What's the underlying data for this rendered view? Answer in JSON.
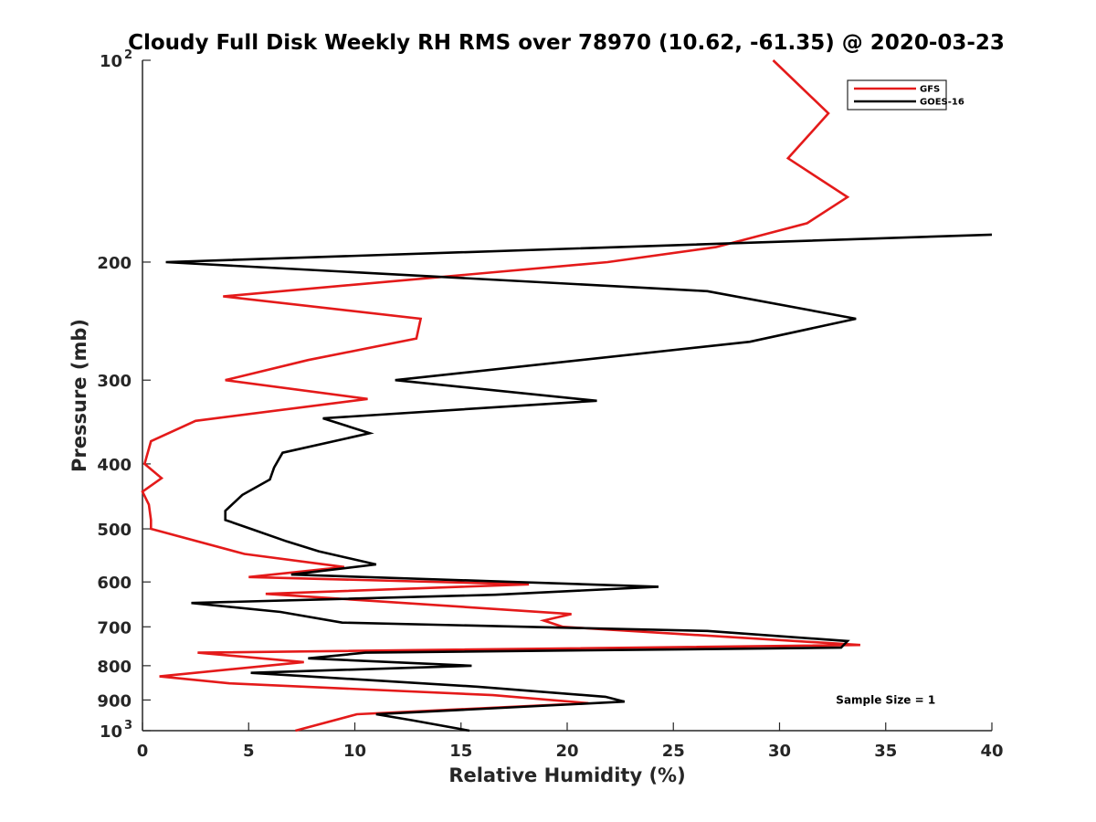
{
  "chart_data": {
    "type": "line",
    "title": "Cloudy Full Disk Weekly RH RMS over 78970 (10.62, -61.35) @ 2020-03-23",
    "xlabel": "Relative Humidity (%)",
    "ylabel": "Pressure (mb)",
    "xlim": [
      0,
      40
    ],
    "ylim": [
      100,
      1000
    ],
    "y_scale": "log",
    "y_reversed": true,
    "x_ticks": [
      "0",
      "5",
      "10",
      "15",
      "20",
      "25",
      "30",
      "35",
      "40"
    ],
    "y_ticks": [
      {
        "value": 100,
        "base": "10",
        "exp": "2"
      },
      {
        "value": 200,
        "label": "200"
      },
      {
        "value": 300,
        "label": "300"
      },
      {
        "value": 400,
        "label": "400"
      },
      {
        "value": 500,
        "label": "500"
      },
      {
        "value": 600,
        "label": "600"
      },
      {
        "value": 700,
        "label": "700"
      },
      {
        "value": 800,
        "label": "800"
      },
      {
        "value": 900,
        "label": "900"
      },
      {
        "value": 1000,
        "base": "10",
        "exp": "3"
      }
    ],
    "legend_position": "top-right",
    "grid": false,
    "series": [
      {
        "name": "GFS",
        "color": "#e41a1a",
        "points": [
          [
            29.7,
            100
          ],
          [
            32.3,
            120
          ],
          [
            30.4,
            140
          ],
          [
            33.2,
            160
          ],
          [
            31.3,
            175
          ],
          [
            27.0,
            190
          ],
          [
            21.9,
            200
          ],
          [
            3.8,
            225
          ],
          [
            13.1,
            243
          ],
          [
            12.9,
            260
          ],
          [
            7.8,
            280
          ],
          [
            3.9,
            300
          ],
          [
            10.6,
            320
          ],
          [
            2.5,
            345
          ],
          [
            0.4,
            370
          ],
          [
            0.1,
            400
          ],
          [
            0.9,
            420
          ],
          [
            0.0,
            440
          ],
          [
            0.3,
            460
          ],
          [
            0.4,
            485
          ],
          [
            0.4,
            500
          ],
          [
            4.8,
            545
          ],
          [
            9.5,
            570
          ],
          [
            5.0,
            590
          ],
          [
            18.2,
            605
          ],
          [
            5.8,
            625
          ],
          [
            20.2,
            670
          ],
          [
            18.9,
            685
          ],
          [
            19.8,
            700
          ],
          [
            33.8,
            745
          ],
          [
            2.6,
            765
          ],
          [
            7.6,
            790
          ],
          [
            0.8,
            830
          ],
          [
            4.1,
            850
          ],
          [
            16.5,
            885
          ],
          [
            21.0,
            910
          ],
          [
            10.1,
            945
          ],
          [
            7.2,
            1000
          ]
        ]
      },
      {
        "name": "GOES-16",
        "color": "#000000",
        "points": [
          [
            40.0,
            182
          ],
          [
            1.1,
            200
          ],
          [
            26.6,
            221
          ],
          [
            33.6,
            243
          ],
          [
            28.6,
            263
          ],
          [
            11.9,
            300
          ],
          [
            21.4,
            322
          ],
          [
            8.5,
            342
          ],
          [
            10.7,
            360
          ],
          [
            6.6,
            385
          ],
          [
            6.2,
            405
          ],
          [
            6.0,
            422
          ],
          [
            4.7,
            445
          ],
          [
            3.9,
            470
          ],
          [
            3.9,
            485
          ],
          [
            5.1,
            500
          ],
          [
            6.8,
            522
          ],
          [
            8.3,
            540
          ],
          [
            11.0,
            565
          ],
          [
            7.0,
            585
          ],
          [
            24.3,
            610
          ],
          [
            16.6,
            627
          ],
          [
            2.3,
            645
          ],
          [
            6.5,
            665
          ],
          [
            9.4,
            690
          ],
          [
            26.6,
            710
          ],
          [
            33.2,
            735
          ],
          [
            32.9,
            752
          ],
          [
            10.5,
            765
          ],
          [
            7.8,
            780
          ],
          [
            15.5,
            800
          ],
          [
            5.1,
            820
          ],
          [
            15.8,
            860
          ],
          [
            21.8,
            890
          ],
          [
            22.7,
            905
          ],
          [
            11.0,
            945
          ],
          [
            12.7,
            965
          ],
          [
            15.4,
            1000
          ]
        ]
      }
    ],
    "annotations": [
      {
        "text": "Sample Size = 1",
        "x": 35.0,
        "y": 900
      }
    ]
  }
}
